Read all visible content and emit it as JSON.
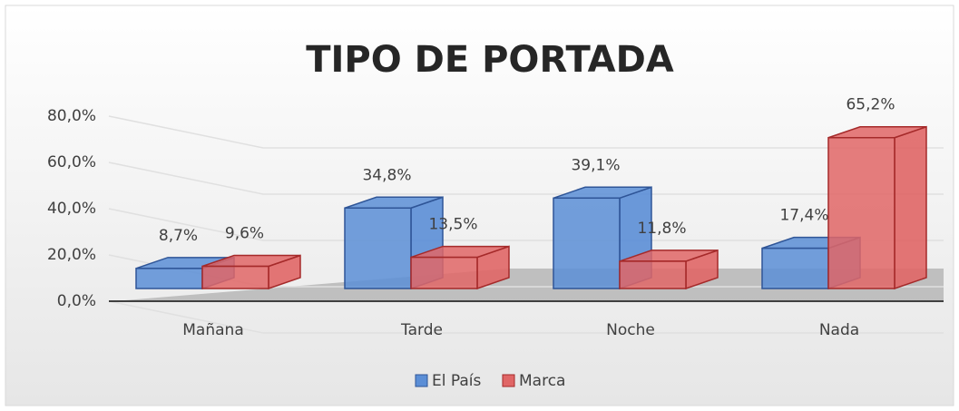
{
  "chart_data": {
    "type": "bar3d",
    "title": "TIPO DE PORTADA",
    "categories": [
      "Mañana",
      "Tarde",
      "Noche",
      "Nada"
    ],
    "series": [
      {
        "name": "El País",
        "color": "#5b8ed6",
        "values": [
          8.7,
          34.8,
          39.1,
          17.4
        ],
        "value_labels": [
          "8,7%",
          "34,8%",
          "39,1%",
          "17,4%"
        ]
      },
      {
        "name": "Marca",
        "color": "#e06666",
        "values": [
          9.6,
          13.5,
          11.8,
          65.2
        ],
        "value_labels": [
          "9,6%",
          "13,5%",
          "11,8%",
          "65,2%"
        ]
      }
    ],
    "ylim": [
      0,
      80
    ],
    "yticks": [
      {
        "value": 0,
        "label": "0,0%"
      },
      {
        "value": 20,
        "label": "20,0%"
      },
      {
        "value": 40,
        "label": "40,0%"
      },
      {
        "value": 60,
        "label": "60,0%"
      },
      {
        "value": 80,
        "label": "80,0%"
      }
    ],
    "grid": true,
    "legend": "bottom"
  }
}
